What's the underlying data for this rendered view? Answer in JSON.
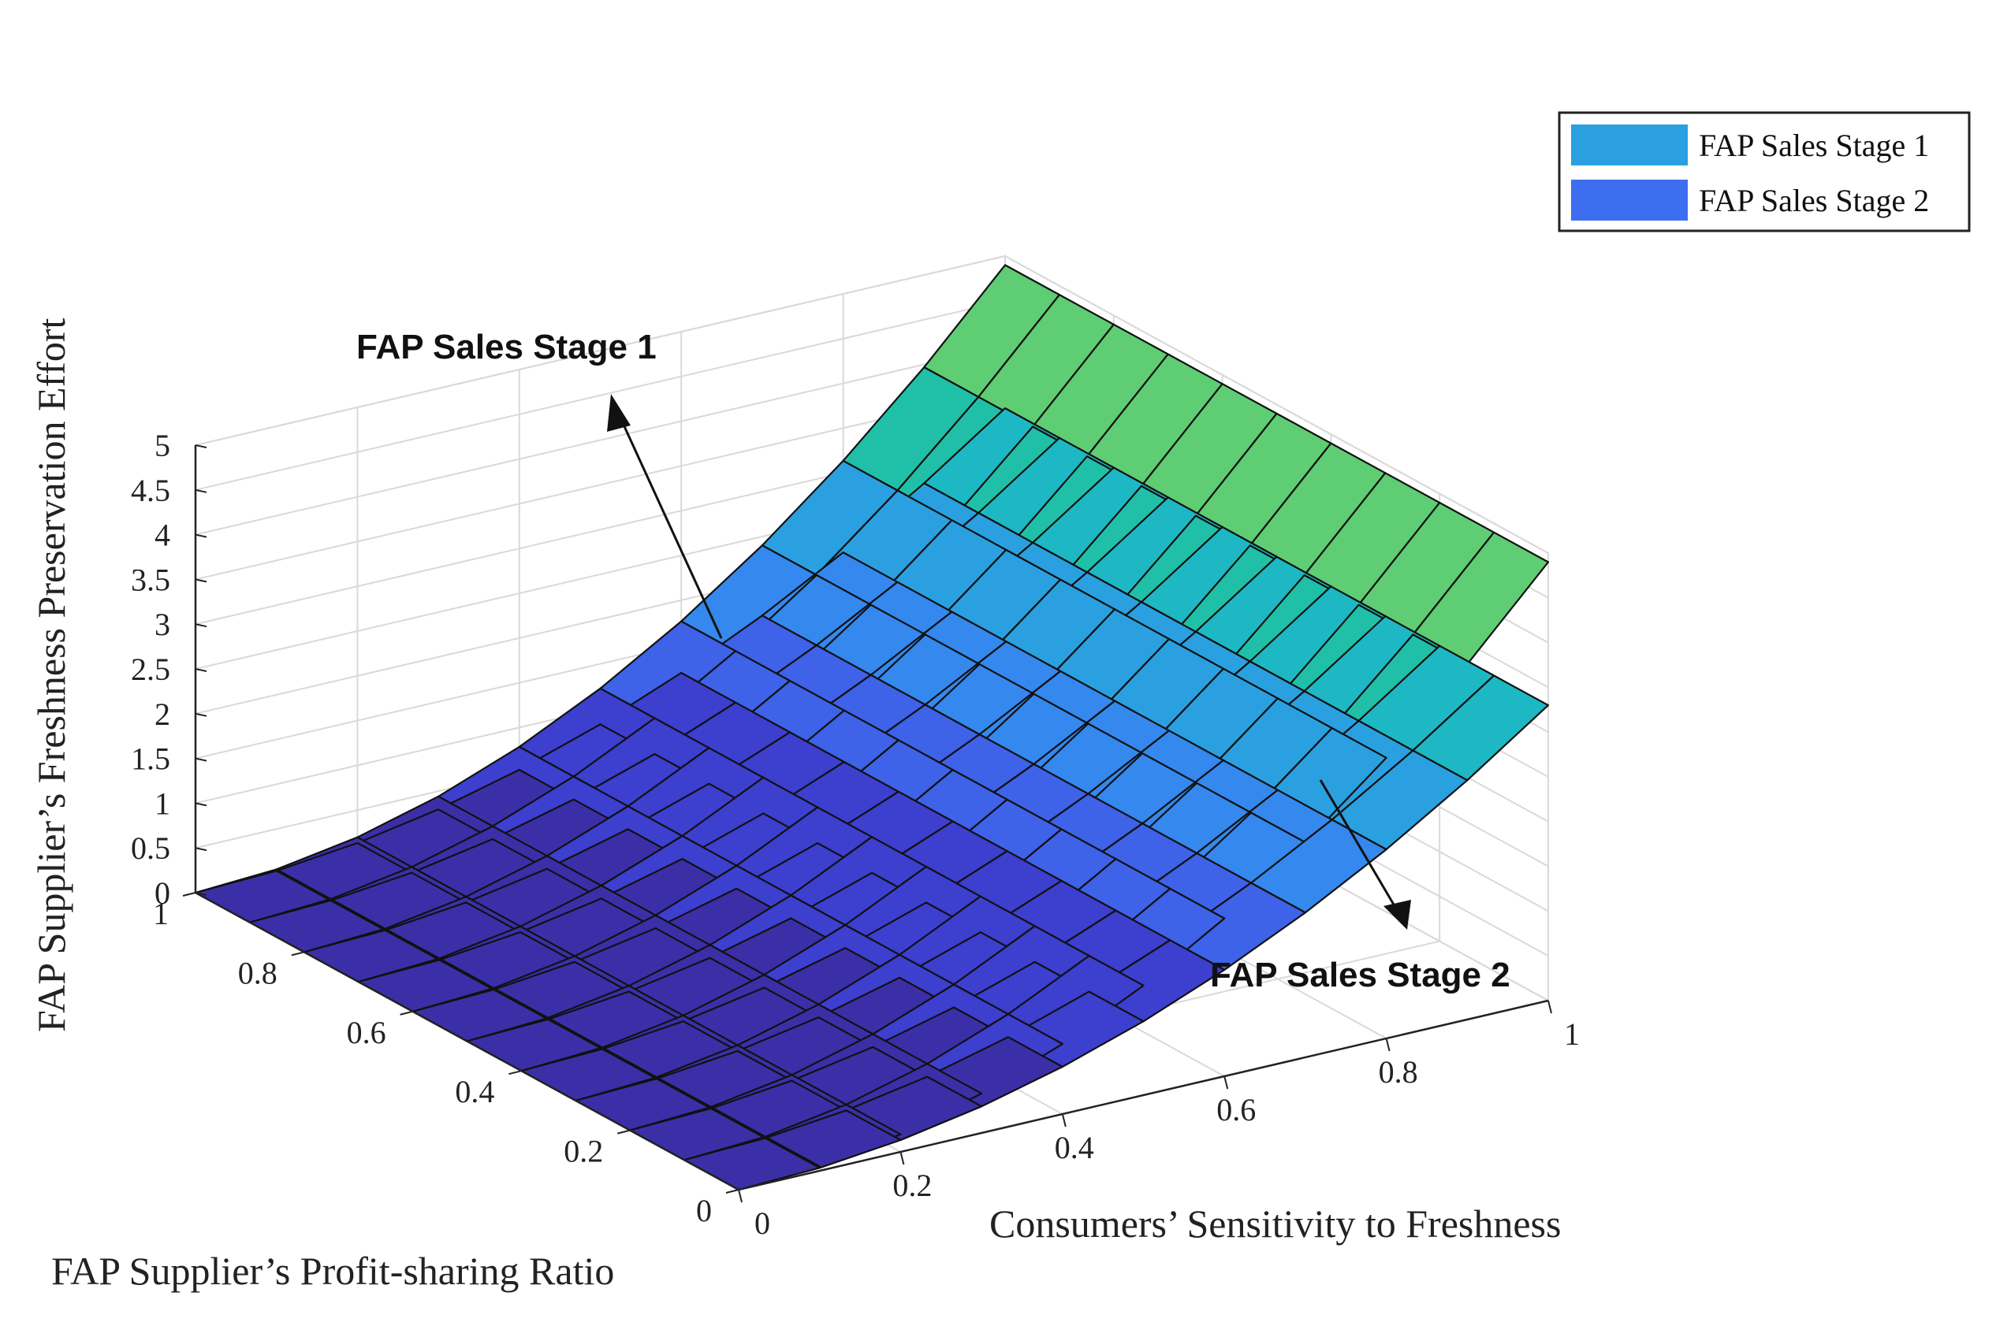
{
  "chart_data": {
    "type": "surface3d",
    "xlabel": "FAP Supplier’s Profit-sharing Ratio",
    "ylabel": "Consumers’ Sensitivity to Freshness",
    "zlabel": "FAP Supplier’s Freshness Preservation Effort",
    "x_ticks": [
      "0",
      "0.2",
      "0.4",
      "0.6",
      "0.8",
      "1"
    ],
    "y_ticks": [
      "0",
      "0.2",
      "0.4",
      "0.6",
      "0.8",
      "1"
    ],
    "z_ticks": [
      "0",
      "0.5",
      "1",
      "1.5",
      "2",
      "2.5",
      "3",
      "3.5",
      "4",
      "4.5",
      "5"
    ],
    "xlim": [
      0,
      1
    ],
    "ylim": [
      0,
      1
    ],
    "zlim": [
      0,
      5
    ],
    "grid": true,
    "legend_position": "top-right",
    "series": [
      {
        "name": "FAP Sales Stage 1",
        "color": "#2aa0e0",
        "surface": "z ≈ 4.9 · y²",
        "values_at_y": {
          "y": [
            0,
            0.2,
            0.4,
            0.6,
            0.8,
            1
          ],
          "z": [
            0,
            0.2,
            0.78,
            1.76,
            3.1,
            4.9
          ]
        }
      },
      {
        "name": "FAP Sales Stage 2",
        "color": "#3d6ef0",
        "surface": "z ≈ 3.3 · y²",
        "values_at_y": {
          "y": [
            0,
            0.2,
            0.4,
            0.6,
            0.8,
            1
          ],
          "z": [
            0,
            0.13,
            0.53,
            1.19,
            2.1,
            3.3
          ]
        }
      }
    ],
    "colormap": [
      "#3b2fa8",
      "#3d3fcf",
      "#3e62e8",
      "#3488ee",
      "#2aa0e0",
      "#1db8c4",
      "#20c0a8",
      "#5fcd73",
      "#f4b93a"
    ],
    "annotations": [
      "FAP Sales Stage 1",
      "FAP Sales Stage 2"
    ]
  }
}
